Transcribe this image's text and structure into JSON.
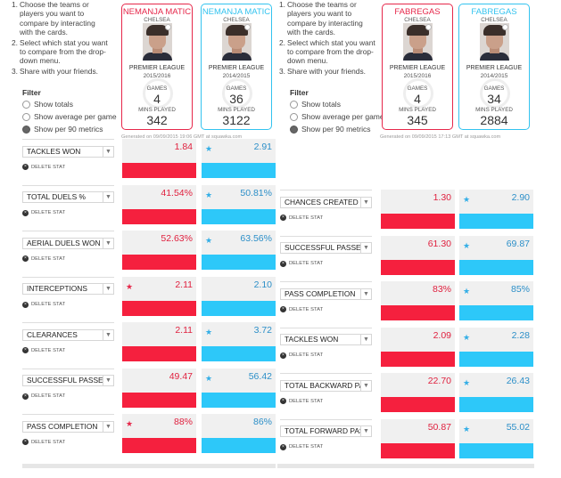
{
  "instructions": [
    "Choose the teams or players you want to compare by interacting with the cards.",
    "Select which stat you want to compare from the drop-down menu.",
    "Share with your friends."
  ],
  "filter": {
    "title": "Filter",
    "options": [
      "Show totals",
      "Show average per game",
      "Show per 90 metrics"
    ],
    "selected_index": 2
  },
  "labels": {
    "games": "GAMES",
    "mins_played": "MINS PLAYED",
    "delete_stat": "DELETE STAT"
  },
  "colors": {
    "player_a": "#f5203e",
    "player_b": "#2dc8f9",
    "bar_background": "#f0f0f0"
  },
  "comparisons": [
    {
      "id": "left",
      "players": [
        {
          "name": "NEMANJA MATIC",
          "club": "CHELSEA",
          "league": "PREMIER LEAGUE",
          "season": "2015/2016",
          "games": "4",
          "mins": "342",
          "color": "red"
        },
        {
          "name": "NEMANJA MATIC",
          "club": "CHELSEA",
          "league": "PREMIER LEAGUE",
          "season": "2014/2015",
          "games": "36",
          "mins": "3122",
          "color": "blue"
        }
      ],
      "generated": "Generated on 09/09/2015 19:06 GMT at squawka.com",
      "stats": [
        {
          "name": "TACKLES WON",
          "a": "1.84",
          "b": "2.91",
          "a_frac": 0.63,
          "b_frac": 1.0,
          "winner": "b"
        },
        {
          "name": "TOTAL DUELS %",
          "a": "41.54%",
          "b": "50.81%",
          "a_frac": 0.82,
          "b_frac": 1.0,
          "winner": "b"
        },
        {
          "name": "AERIAL DUELS WON",
          "a": "52.63%",
          "b": "63.56%",
          "a_frac": 0.83,
          "b_frac": 1.0,
          "winner": "b"
        },
        {
          "name": "INTERCEPTIONS",
          "a": "2.11",
          "b": "2.10",
          "a_frac": 1.0,
          "b_frac": 0.99,
          "winner": "a"
        },
        {
          "name": "CLEARANCES",
          "a": "2.11",
          "b": "3.72",
          "a_frac": 0.57,
          "b_frac": 1.0,
          "winner": "b"
        },
        {
          "name": "SUCCESSFUL PASSES",
          "a": "49.47",
          "b": "56.42",
          "a_frac": 0.88,
          "b_frac": 1.0,
          "winner": "b"
        },
        {
          "name": "PASS COMPLETION",
          "a": "88%",
          "b": "86%",
          "a_frac": 1.0,
          "b_frac": 0.98,
          "winner": "a"
        }
      ]
    },
    {
      "id": "right",
      "players": [
        {
          "name": "FABREGAS",
          "club": "CHELSEA",
          "league": "PREMIER LEAGUE",
          "season": "2015/2016",
          "games": "4",
          "mins": "345",
          "color": "red"
        },
        {
          "name": "FABREGAS",
          "club": "CHELSEA",
          "league": "PREMIER LEAGUE",
          "season": "2014/2015",
          "games": "34",
          "mins": "2884",
          "color": "blue"
        }
      ],
      "generated": "Generated on 09/09/2015 17:13 GMT at squawka.com",
      "stats": [
        {
          "name": "CHANCES CREATED",
          "a": "1.30",
          "b": "2.90",
          "a_frac": 0.45,
          "b_frac": 1.0,
          "winner": "b"
        },
        {
          "name": "SUCCESSFUL PASSES",
          "a": "61.30",
          "b": "69.87",
          "a_frac": 0.88,
          "b_frac": 1.0,
          "winner": "b"
        },
        {
          "name": "PASS COMPLETION",
          "a": "83%",
          "b": "85%",
          "a_frac": 0.98,
          "b_frac": 1.0,
          "winner": "b"
        },
        {
          "name": "TACKLES WON",
          "a": "2.09",
          "b": "2.28",
          "a_frac": 0.92,
          "b_frac": 1.0,
          "winner": "b"
        },
        {
          "name": "TOTAL BACKWARD PASSES",
          "a": "22.70",
          "b": "26.43",
          "a_frac": 0.86,
          "b_frac": 1.0,
          "winner": "b"
        },
        {
          "name": "TOTAL FORWARD PASSES",
          "a": "50.87",
          "b": "55.02",
          "a_frac": 0.92,
          "b_frac": 1.0,
          "winner": "b"
        }
      ]
    }
  ]
}
